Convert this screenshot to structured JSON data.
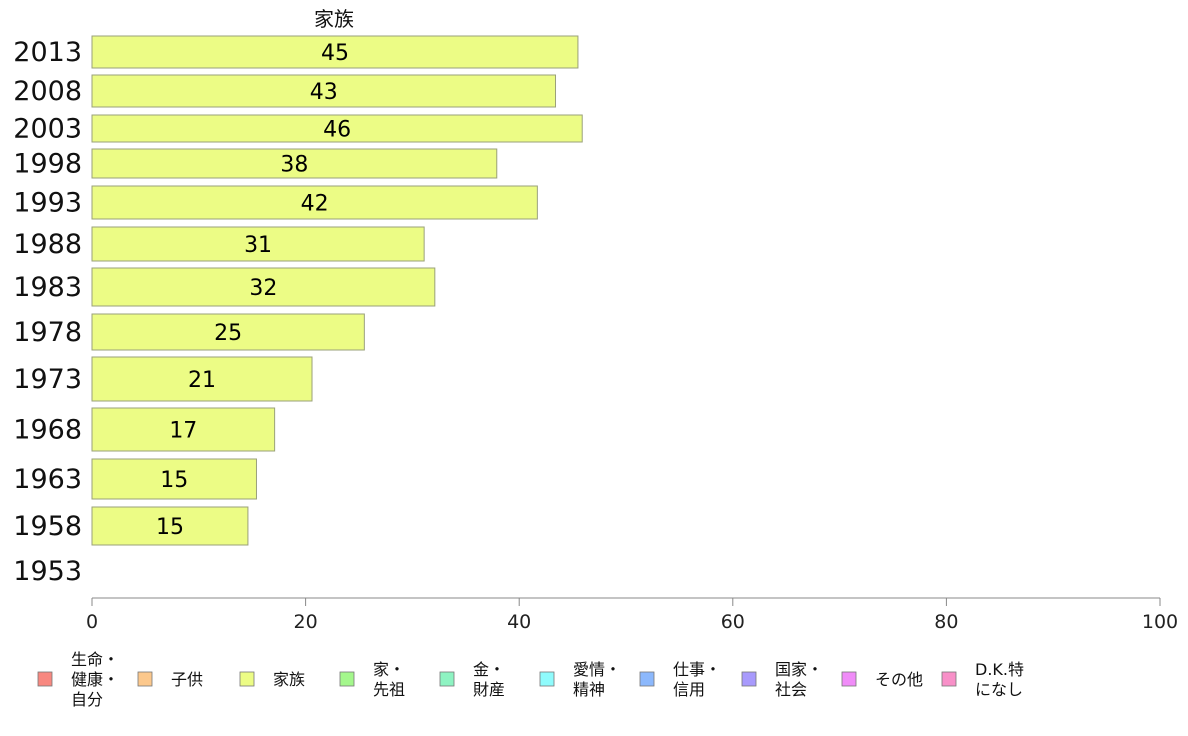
{
  "chart_data": {
    "type": "bar",
    "orientation": "horizontal",
    "series_title": "家族",
    "categories": [
      "2013",
      "2008",
      "2003",
      "1998",
      "1993",
      "1988",
      "1983",
      "1978",
      "1973",
      "1968",
      "1963",
      "1958",
      "1953"
    ],
    "values": [
      45,
      43,
      46,
      38,
      42,
      31,
      32,
      25,
      21,
      17,
      15,
      15,
      null
    ],
    "value_labels": [
      "45",
      "43",
      "46",
      "38",
      "42",
      "31",
      "32",
      "25",
      "21",
      "17",
      "15",
      "15",
      ""
    ],
    "series_precise": [
      45.5,
      43.4,
      45.9,
      37.9,
      41.7,
      31.1,
      32.1,
      25.5,
      20.6,
      17.1,
      15.4,
      14.6,
      null
    ],
    "xlim": [
      0,
      100
    ],
    "xticks": [
      "0",
      "20",
      "40",
      "60",
      "80",
      "100"
    ],
    "bar_color": "#ecfc85",
    "bar_stroke": "#9aa07a",
    "grid": false,
    "legend_position": "bottom",
    "legend": [
      {
        "lines": [
          "生命・",
          "健康・",
          "自分"
        ],
        "color": "#f88880"
      },
      {
        "lines": [
          "子供"
        ],
        "color": "#fcc88c"
      },
      {
        "lines": [
          "家族"
        ],
        "color": "#ecfc85"
      },
      {
        "lines": [
          "家・",
          "先祖"
        ],
        "color": "#a4f78c"
      },
      {
        "lines": [
          "金・",
          "財産"
        ],
        "color": "#8ef3c2"
      },
      {
        "lines": [
          "愛情・",
          "精神"
        ],
        "color": "#8ffbfc"
      },
      {
        "lines": [
          "仕事・",
          "信用"
        ],
        "color": "#8cb8fc"
      },
      {
        "lines": [
          "国家・",
          "社会"
        ],
        "color": "#a89afc"
      },
      {
        "lines": [
          "その他"
        ],
        "color": "#f08cf8"
      },
      {
        "lines": [
          "D.K.特",
          "になし"
        ],
        "color": "#f890c8"
      }
    ]
  }
}
